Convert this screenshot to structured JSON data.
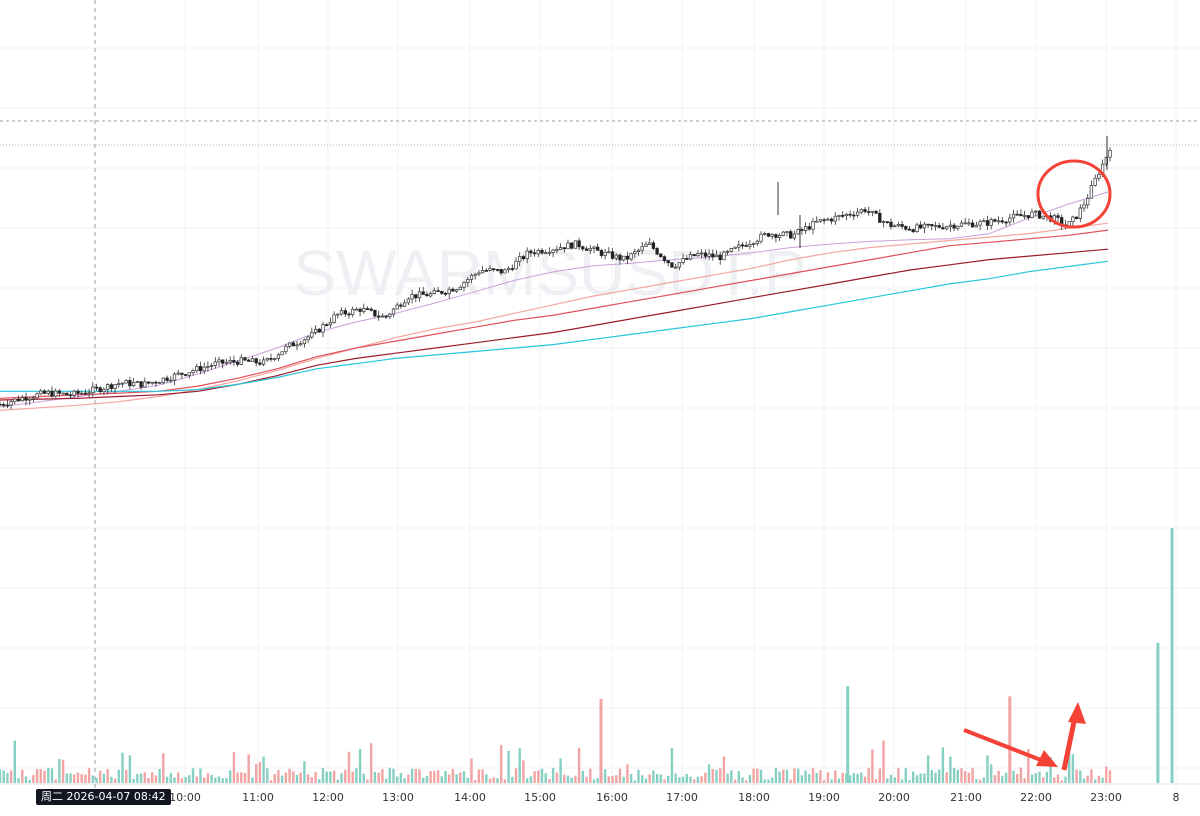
{
  "chart_data": {
    "type": "candlestick",
    "symbol_watermark": "SWARMSUSDT.P",
    "crosshair_label": "周二 2026-04-07   08:42",
    "x_labels": [
      "10:00",
      "11:00",
      "12:00",
      "13:00",
      "14:00",
      "15:00",
      "16:00",
      "17:00",
      "18:00",
      "19:00",
      "20:00",
      "21:00",
      "22:00",
      "23:00",
      "8"
    ],
    "grid": true,
    "price_series": {
      "name": "",
      "x": [
        0,
        0.5,
        1,
        1.5,
        2,
        2.5,
        3,
        3.5,
        4,
        4.5,
        5,
        5.5,
        6,
        6.5,
        7,
        7.5,
        8,
        8.5,
        9,
        9.5,
        10,
        10.5,
        11,
        11.5,
        12,
        12.5,
        13,
        13.5,
        14,
        14.5,
        15,
        15.5,
        16,
        16.5,
        17,
        17.5,
        18,
        18.5,
        19,
        19.5,
        20,
        20.5,
        21,
        21.5,
        22,
        22.2,
        22.4,
        22.6,
        22.8,
        23,
        23.1
      ],
      "close": [
        95,
        103,
        108,
        106,
        112,
        120,
        118,
        126,
        134,
        142,
        145,
        143,
        162,
        175,
        198,
        205,
        195,
        220,
        222,
        230,
        250,
        248,
        270,
        275,
        280,
        270,
        262,
        280,
        255,
        268,
        265,
        280,
        292,
        290,
        305,
        312,
        320,
        302,
        298,
        300,
        303,
        304,
        310,
        315,
        308,
        300,
        312,
        330,
        355,
        378,
        392
      ]
    },
    "moving_averages": [
      {
        "name": "",
        "color": "#c9a0dc",
        "y": [
          92,
          98,
          104,
          110,
          117,
          130,
          145,
          160,
          178,
          190,
          200,
          212,
          225,
          238,
          248,
          255,
          258,
          262,
          265,
          270,
          276,
          280,
          283,
          285,
          286,
          292,
          310,
          326,
          340
        ]
      },
      {
        "name": "",
        "color": "#f4a6a0",
        "y": [
          88,
          91,
          94,
          98,
          104,
          112,
          122,
          134,
          148,
          160,
          172,
          182,
          190,
          200,
          210,
          220,
          228,
          236,
          244,
          252,
          262,
          270,
          276,
          280,
          284,
          288,
          292,
          298,
          304
        ]
      },
      {
        "name": "",
        "color": "#e0505a",
        "y": [
          102,
          104,
          106,
          108,
          110,
          116,
          125,
          136,
          150,
          160,
          168,
          176,
          184,
          192,
          198,
          206,
          214,
          222,
          230,
          238,
          246,
          254,
          262,
          270,
          278,
          282,
          286,
          290,
          296
        ]
      },
      {
        "name": "",
        "color": "#9b1b2a",
        "y": [
          100,
          101,
          102,
          104,
          106,
          110,
          118,
          128,
          140,
          148,
          154,
          160,
          166,
          172,
          178,
          186,
          194,
          202,
          210,
          218,
          226,
          234,
          242,
          250,
          256,
          262,
          266,
          270,
          274
        ]
      },
      {
        "name": "",
        "color": "#26c6da",
        "y": [
          110,
          110,
          110,
          110,
          110,
          112,
          118,
          126,
          136,
          142,
          148,
          152,
          156,
          160,
          164,
          170,
          176,
          182,
          188,
          194,
          202,
          210,
          218,
          226,
          234,
          240,
          248,
          254,
          260
        ]
      }
    ],
    "volume": {
      "scale": "relative",
      "values_highlight": [
        {
          "x": 18.4,
          "v": 0.38
        },
        {
          "x": 20.7,
          "v": 0.34
        },
        {
          "x": 14.9,
          "v": 0.33
        },
        {
          "x": 22.8,
          "v": 0.55
        },
        {
          "x": 23.0,
          "v": 1.0
        }
      ]
    },
    "annotations": [
      {
        "type": "circle",
        "color": "#f44336",
        "note": ""
      },
      {
        "type": "arrow",
        "color": "#f44336",
        "note": ""
      },
      {
        "type": "arrow",
        "color": "#f44336",
        "note": ""
      }
    ]
  }
}
